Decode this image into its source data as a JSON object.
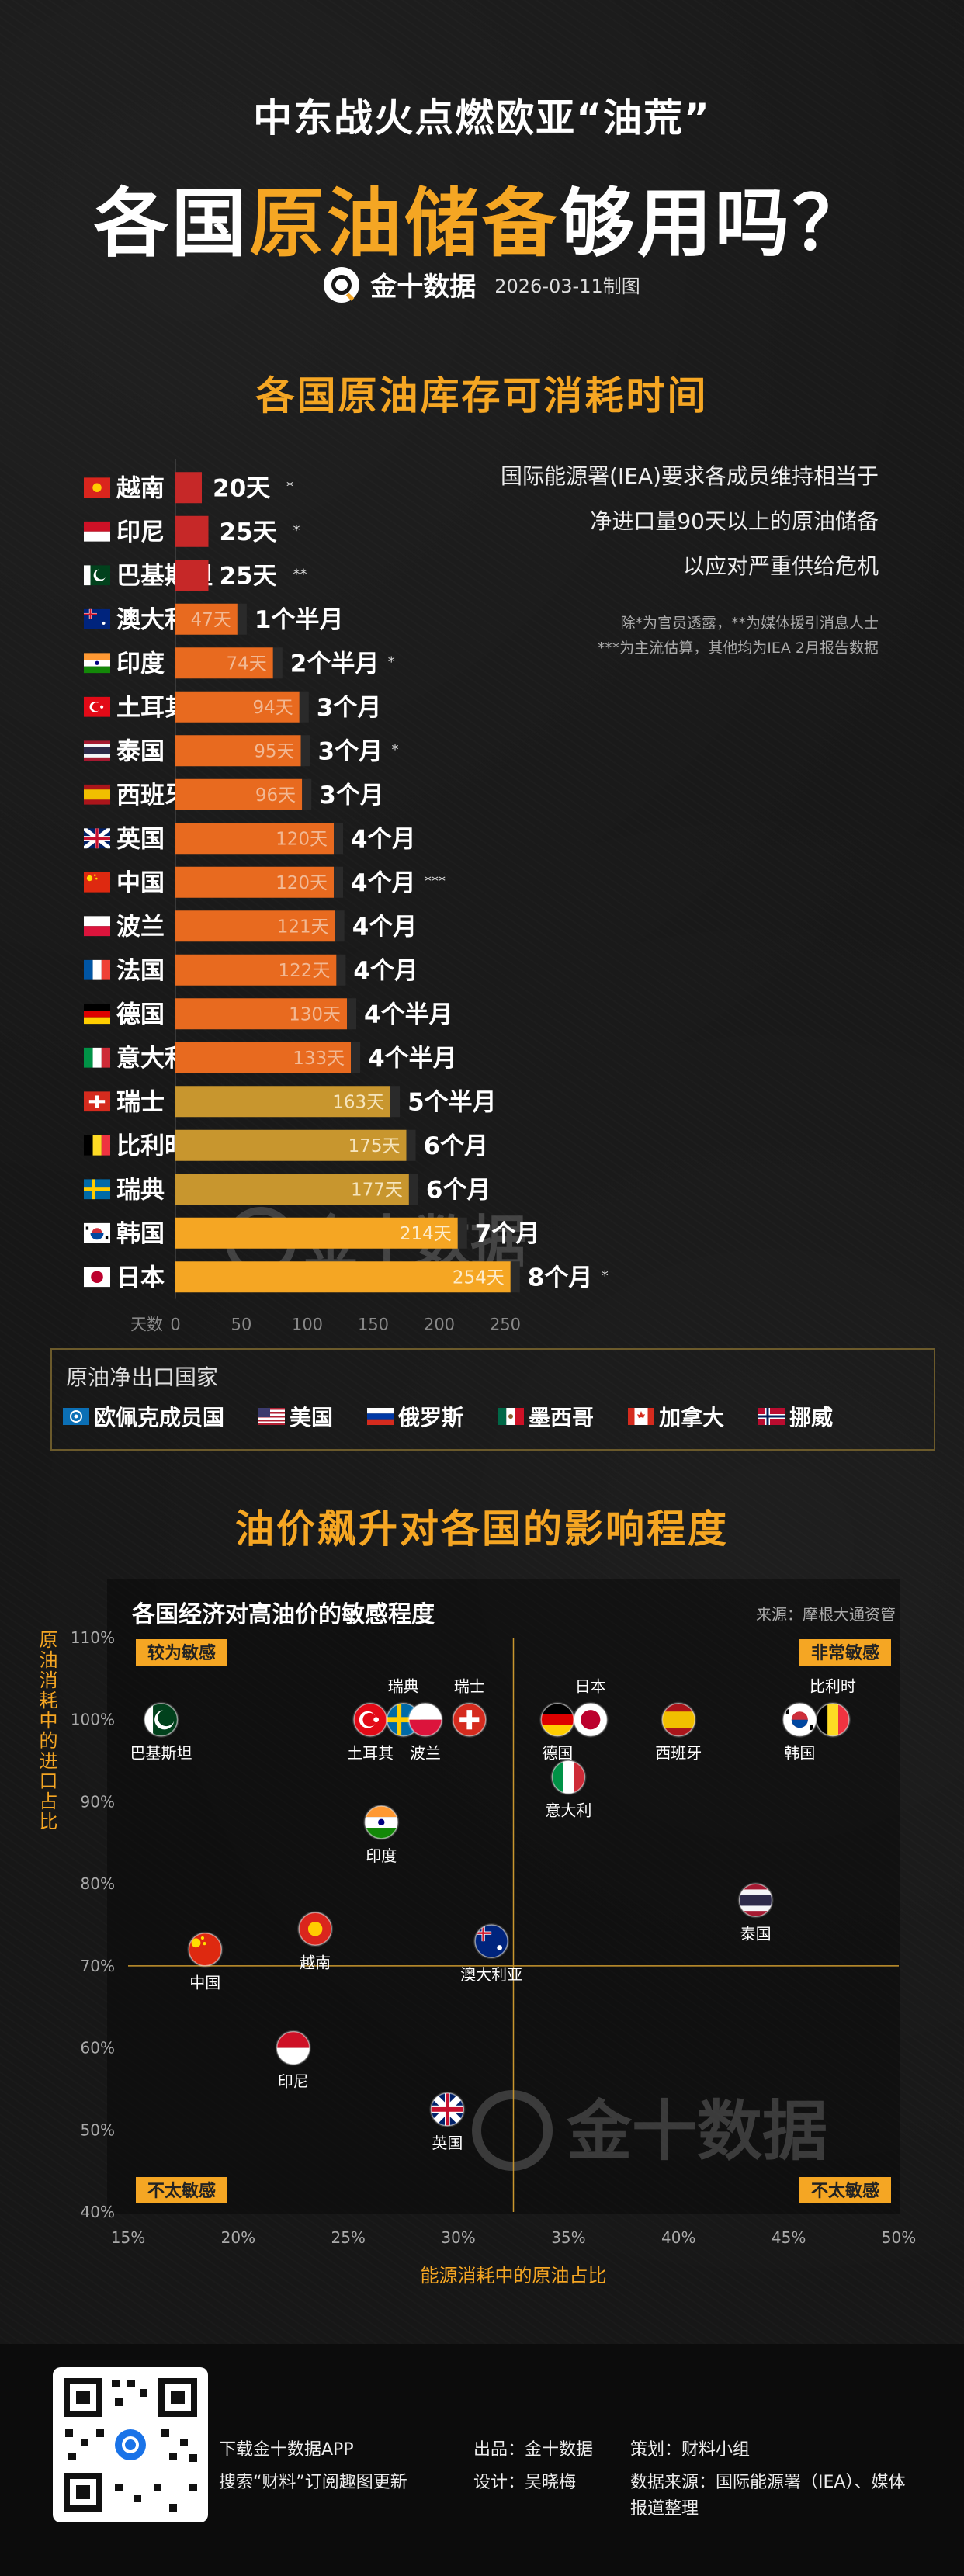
{
  "header": {
    "subtitle": "中东战火点燃欧亚“油荒”",
    "title_pre": "各国",
    "title_hl": "原油储备",
    "title_post": "够用吗？",
    "brand": "金十数据",
    "date": "2026-03-11制图"
  },
  "section1_title": "各国原油库存可消耗时间",
  "notes": {
    "line1": "国际能源署(IEA)要求各成员维持相当于",
    "line2": "净进口量90天以上的原油储备",
    "line3": "以应对严重供给危机",
    "small1": "除*为官员透露，**为媒体援引消息人士",
    "small2": "***为主流估算，其他均为IEA 2月报告数据"
  },
  "chart_data": [
    {
      "type": "bar",
      "orientation": "horizontal",
      "title": "各国原油库存可消耗时间",
      "xlabel": "天数",
      "xlim": [
        0,
        254
      ],
      "xticks": [
        0,
        50,
        100,
        150,
        200,
        250
      ],
      "categories": [
        "越南",
        "印尼",
        "巴基斯坦",
        "澳大利亚",
        "印度",
        "土耳其",
        "泰国",
        "西班牙",
        "英国",
        "中国",
        "波兰",
        "法国",
        "德国",
        "意大利",
        "瑞士",
        "比利时",
        "瑞典",
        "韩国",
        "日本"
      ],
      "values": [
        20,
        25,
        25,
        47,
        74,
        94,
        95,
        96,
        120,
        120,
        121,
        122,
        130,
        133,
        163,
        175,
        177,
        214,
        254
      ],
      "value_labels": [
        "",
        "",
        "",
        "47天",
        "74天",
        "94天",
        "95天",
        "96天",
        "120天",
        "120天",
        "121天",
        "122天",
        "130天",
        "133天",
        "163天",
        "175天",
        "177天",
        "214天",
        "254天"
      ],
      "end_labels": [
        "20天",
        "25天",
        "25天",
        "1个半月",
        "2个半月",
        "3个月",
        "3个月",
        "3个月",
        "4个月",
        "4个月",
        "4个月",
        "4个月",
        "4个半月",
        "4个半月",
        "5个半月",
        "6个月",
        "6个月",
        "7个月",
        "8个月"
      ],
      "end_marks": [
        "*",
        "*",
        "**",
        "",
        "*",
        "",
        "*",
        "",
        "",
        "***",
        "",
        "",
        "",
        "",
        "",
        "",
        "",
        "",
        "*"
      ],
      "colors": {
        "short": "#c62828",
        "mid": "#e86a1f",
        "long": "#c8962e",
        "longest": "#f5a623"
      }
    },
    {
      "type": "scatter",
      "title": "各国经济对高油价的敏感程度",
      "source": "来源：摩根大通资管",
      "xlabel": "能源消耗中的原油占比",
      "ylabel": "原油消耗中的进口占比",
      "xlim": [
        15,
        50
      ],
      "ylim": [
        40,
        110
      ],
      "xticks": [
        "15%",
        "20%",
        "25%",
        "30%",
        "35%",
        "40%",
        "45%",
        "50%"
      ],
      "yticks": [
        "40%",
        "50%",
        "60%",
        "70%",
        "80%",
        "90%",
        "100%",
        "110%"
      ],
      "divider": {
        "x": 32.5,
        "y": 70
      },
      "quadrants": {
        "top_left": "较为敏感",
        "top_right": "非常敏感",
        "bottom_left": "不太敏感",
        "bottom_right": "不太敏感"
      },
      "points": [
        {
          "name": "巴基斯坦",
          "x": 16.5,
          "y": 100
        },
        {
          "name": "土耳其",
          "x": 26.0,
          "y": 100
        },
        {
          "name": "瑞典",
          "x": 27.5,
          "y": 100
        },
        {
          "name": "波兰",
          "x": 28.5,
          "y": 100
        },
        {
          "name": "瑞士",
          "x": 30.5,
          "y": 100
        },
        {
          "name": "德国",
          "x": 34.5,
          "y": 100
        },
        {
          "name": "日本",
          "x": 36.0,
          "y": 100
        },
        {
          "name": "西班牙",
          "x": 40.0,
          "y": 100
        },
        {
          "name": "韩国",
          "x": 45.5,
          "y": 100
        },
        {
          "name": "比利时",
          "x": 47.0,
          "y": 100
        },
        {
          "name": "意大利",
          "x": 35.0,
          "y": 93
        },
        {
          "name": "印度",
          "x": 26.5,
          "y": 87.5
        },
        {
          "name": "泰国",
          "x": 43.5,
          "y": 78
        },
        {
          "name": "中国",
          "x": 18.5,
          "y": 72
        },
        {
          "name": "越南",
          "x": 23.5,
          "y": 74.5
        },
        {
          "name": "澳大利亚",
          "x": 31.5,
          "y": 73
        },
        {
          "name": "印尼",
          "x": 22.5,
          "y": 60
        },
        {
          "name": "英国",
          "x": 29.5,
          "y": 52.5
        }
      ]
    }
  ],
  "exporters": {
    "title": "原油净出口国家",
    "items": [
      "欧佩克成员国",
      "美国",
      "俄罗斯",
      "墨西哥",
      "加拿大",
      "挪威"
    ]
  },
  "section2_title": "油价飙升对各国的影响程度",
  "watermark": "金十数据",
  "footer": {
    "app": "下载金十数据APP",
    "search": "搜索“财料”订阅趣图更新",
    "producer": "出品：金十数据",
    "designer": "设计：吴晓梅",
    "planner": "策划：财料小组",
    "source_line1": "数据来源：国际能源署（IEA）、媒体",
    "source_line2": "报道整理"
  }
}
